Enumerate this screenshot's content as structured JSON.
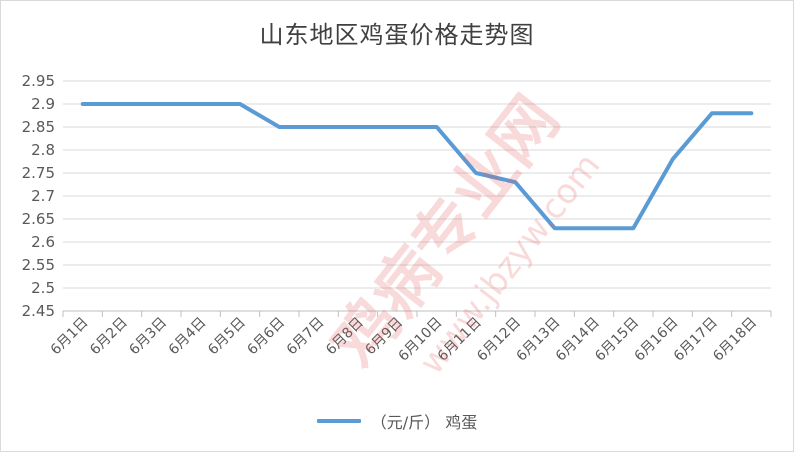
{
  "chart_data": {
    "type": "line",
    "title": "山东地区鸡蛋价格走势图",
    "categories": [
      "6月1日",
      "6月2日",
      "6月3日",
      "6月4日",
      "6月5日",
      "6月6日",
      "6月7日",
      "6月8日",
      "6月9日",
      "6月10日",
      "6月11日",
      "6月12日",
      "6月13日",
      "6月14日",
      "6月15日",
      "6月16日",
      "6月17日",
      "6月18日"
    ],
    "series": [
      {
        "name": "（元/斤） 鸡蛋",
        "values": [
          2.9,
          2.9,
          2.9,
          2.9,
          2.9,
          2.85,
          2.85,
          2.85,
          2.85,
          2.85,
          2.75,
          2.73,
          2.63,
          2.63,
          2.63,
          2.78,
          2.88,
          2.88
        ],
        "color": "#5b9bd5"
      }
    ],
    "ylim": [
      2.45,
      2.95
    ],
    "yticks": [
      "2.45",
      "2.5",
      "2.55",
      "2.6",
      "2.65",
      "2.7",
      "2.75",
      "2.8",
      "2.85",
      "2.9",
      "2.95"
    ],
    "grid": true,
    "legend_position": "bottom",
    "xlabel": "",
    "ylabel": ""
  },
  "watermark": {
    "text_main": "鸡病专业网",
    "text_url": "www.jbzyw.com"
  }
}
